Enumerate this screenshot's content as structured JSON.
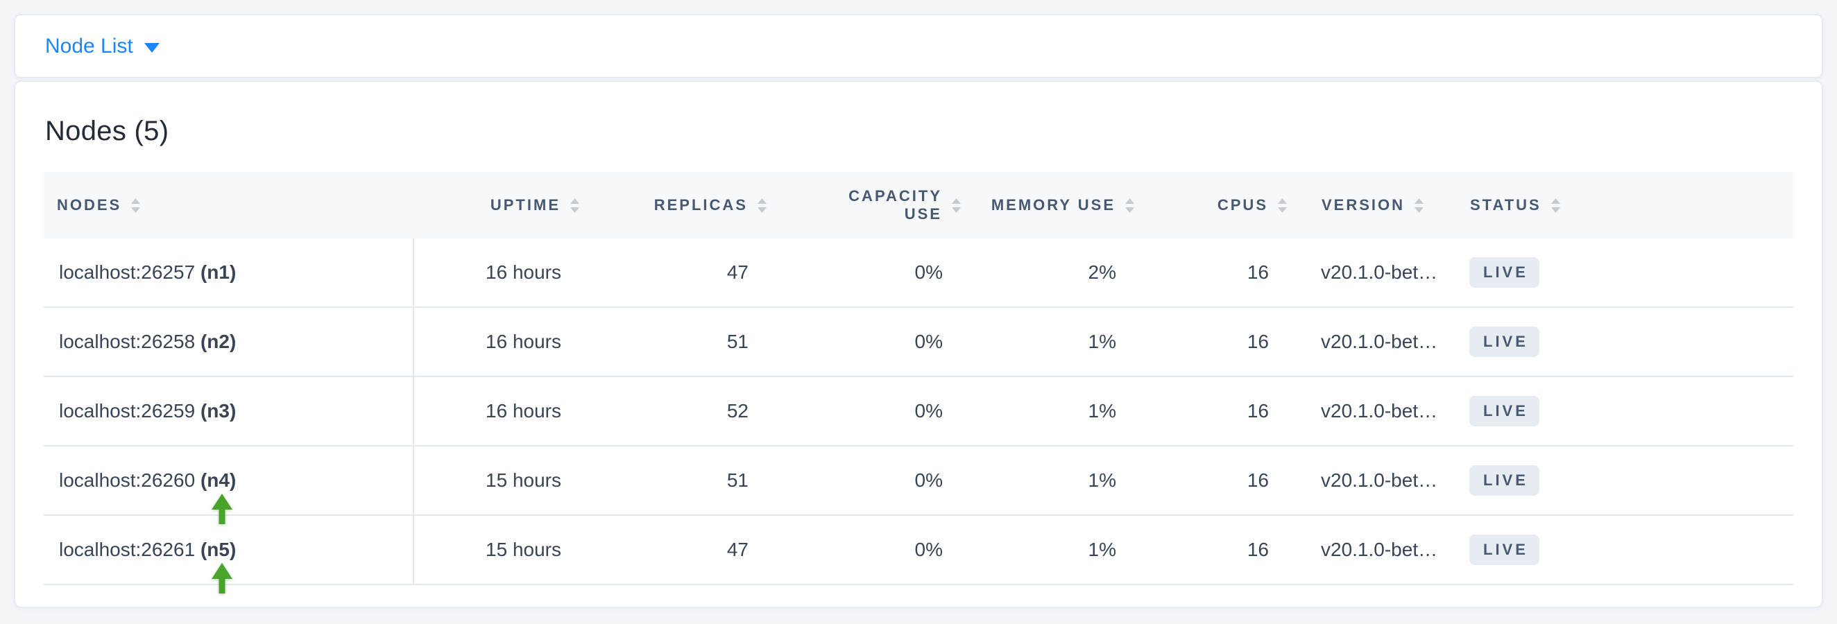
{
  "topbar": {
    "dropdown_label": "Node List"
  },
  "card": {
    "title": "Nodes (5)"
  },
  "table": {
    "columns": [
      {
        "id": "nodes",
        "label": "NODES",
        "align": "left",
        "sortable": true
      },
      {
        "id": "uptime",
        "label": "UPTIME",
        "align": "right",
        "sortable": true
      },
      {
        "id": "replicas",
        "label": "REPLICAS",
        "align": "right",
        "sortable": true
      },
      {
        "id": "capacity_use",
        "label": "CAPACITY USE",
        "align": "right",
        "sortable": true,
        "wrap": true
      },
      {
        "id": "memory_use",
        "label": "MEMORY USE",
        "align": "right",
        "sortable": true
      },
      {
        "id": "cpus",
        "label": "CPUS",
        "align": "right",
        "sortable": true
      },
      {
        "id": "version",
        "label": "VERSION",
        "align": "left",
        "sortable": true
      },
      {
        "id": "status",
        "label": "STATUS",
        "align": "left",
        "sortable": true
      }
    ],
    "rows": [
      {
        "address": "localhost:26257",
        "node_id": "(n1)",
        "uptime": "16 hours",
        "replicas": "47",
        "capacity_use": "0%",
        "memory_use": "2%",
        "cpus": "16",
        "version": "v20.1.0-bet…",
        "status": "LIVE",
        "arrow": false
      },
      {
        "address": "localhost:26258",
        "node_id": "(n2)",
        "uptime": "16 hours",
        "replicas": "51",
        "capacity_use": "0%",
        "memory_use": "1%",
        "cpus": "16",
        "version": "v20.1.0-bet…",
        "status": "LIVE",
        "arrow": false
      },
      {
        "address": "localhost:26259",
        "node_id": "(n3)",
        "uptime": "16 hours",
        "replicas": "52",
        "capacity_use": "0%",
        "memory_use": "1%",
        "cpus": "16",
        "version": "v20.1.0-bet…",
        "status": "LIVE",
        "arrow": false
      },
      {
        "address": "localhost:26260",
        "node_id": "(n4)",
        "uptime": "15 hours",
        "replicas": "51",
        "capacity_use": "0%",
        "memory_use": "1%",
        "cpus": "16",
        "version": "v20.1.0-bet…",
        "status": "LIVE",
        "arrow": true
      },
      {
        "address": "localhost:26261",
        "node_id": "(n5)",
        "uptime": "15 hours",
        "replicas": "47",
        "capacity_use": "0%",
        "memory_use": "1%",
        "cpus": "16",
        "version": "v20.1.0-bet…",
        "status": "LIVE",
        "arrow": true
      }
    ]
  },
  "colors": {
    "accent_blue": "#1a85ff",
    "arrow_green": "#4aa42b",
    "badge_bg": "#e7ebf2",
    "badge_text": "#475872",
    "header_text": "#475872",
    "body_text": "#394455"
  }
}
